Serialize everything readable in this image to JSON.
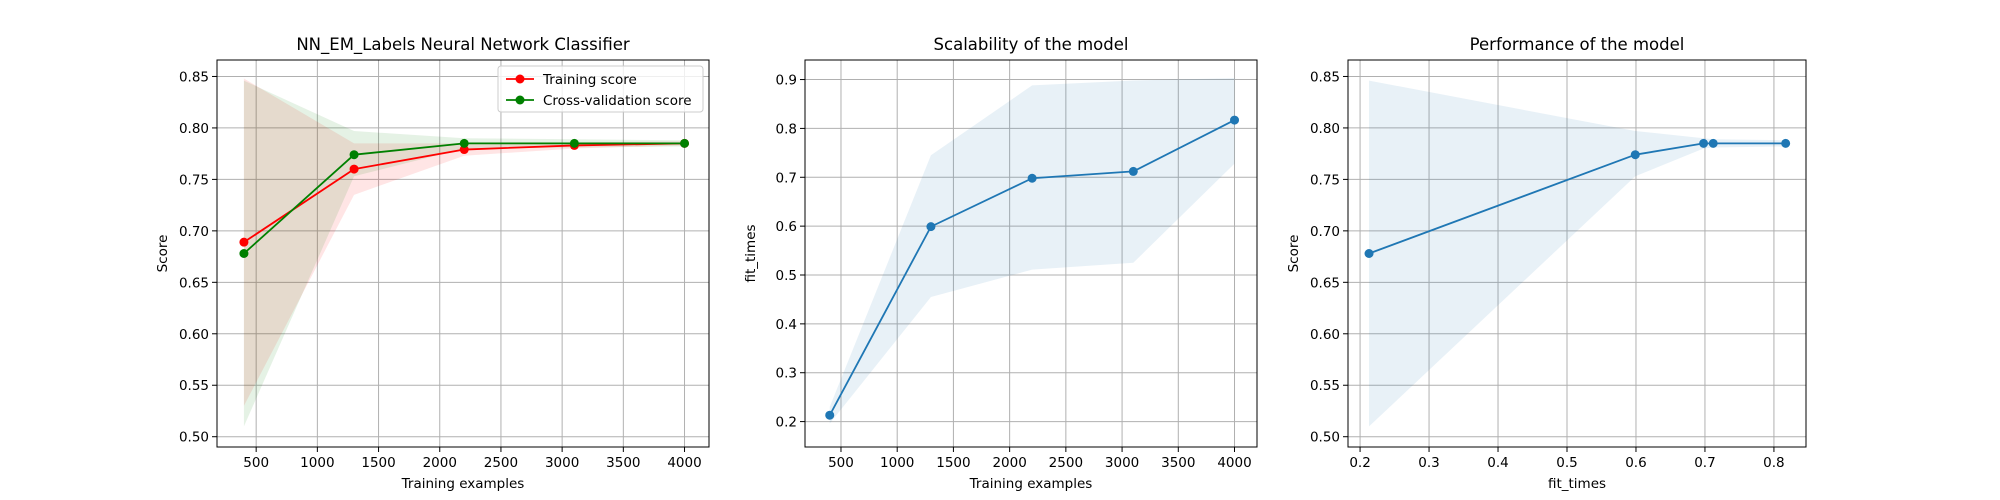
{
  "chart_data": [
    {
      "type": "line",
      "title": "NN_EM_Labels Neural Network Classifier",
      "xlabel": "Training examples",
      "ylabel": "Score",
      "xlim": [
        180,
        4200
      ],
      "ylim": [
        0.49,
        0.866
      ],
      "xticks": [
        500,
        1000,
        1500,
        2000,
        2500,
        3000,
        3500,
        4000
      ],
      "xtick_labels": [
        "500",
        "1000",
        "1500",
        "2000",
        "2500",
        "3000",
        "3500",
        "4000"
      ],
      "yticks": [
        0.5,
        0.55,
        0.6,
        0.65,
        0.7,
        0.75,
        0.8,
        0.85
      ],
      "ytick_labels": [
        "0.50",
        "0.55",
        "0.60",
        "0.65",
        "0.70",
        "0.75",
        "0.80",
        "0.85"
      ],
      "grid": true,
      "legend_position": "top-right",
      "x": [
        400,
        1300,
        2200,
        3100,
        4000
      ],
      "series": [
        {
          "name": "Training score",
          "color": "#ff0000",
          "values": [
            0.689,
            0.76,
            0.779,
            0.783,
            0.785
          ],
          "band_lower": [
            0.53,
            0.735,
            0.773,
            0.78,
            0.783
          ],
          "band_upper": [
            0.848,
            0.785,
            0.785,
            0.786,
            0.787
          ]
        },
        {
          "name": "Cross-validation score",
          "color": "#008000",
          "values": [
            0.678,
            0.774,
            0.785,
            0.785,
            0.785
          ],
          "band_lower": [
            0.51,
            0.753,
            0.78,
            0.781,
            0.782
          ],
          "band_upper": [
            0.846,
            0.797,
            0.79,
            0.789,
            0.788
          ]
        }
      ]
    },
    {
      "type": "line",
      "title": "Scalability of the model",
      "xlabel": "Training examples",
      "ylabel": "fit_times",
      "xlim": [
        180,
        4200
      ],
      "ylim": [
        0.148,
        0.94
      ],
      "xticks": [
        500,
        1000,
        1500,
        2000,
        2500,
        3000,
        3500,
        4000
      ],
      "xtick_labels": [
        "500",
        "1000",
        "1500",
        "2000",
        "2500",
        "3000",
        "3500",
        "4000"
      ],
      "yticks": [
        0.2,
        0.3,
        0.4,
        0.5,
        0.6,
        0.7,
        0.8,
        0.9
      ],
      "ytick_labels": [
        "0.2",
        "0.3",
        "0.4",
        "0.5",
        "0.6",
        "0.7",
        "0.8",
        "0.9"
      ],
      "grid": true,
      "x": [
        400,
        1300,
        2200,
        3100,
        4000
      ],
      "series": [
        {
          "color": "#1f77b4",
          "values": [
            0.213,
            0.599,
            0.698,
            0.712,
            0.817
          ],
          "band_lower": [
            0.196,
            0.455,
            0.511,
            0.525,
            0.728
          ],
          "band_upper": [
            0.23,
            0.745,
            0.888,
            0.898,
            0.903
          ]
        }
      ]
    },
    {
      "type": "line",
      "title": "Performance of the model",
      "xlabel": "fit_times",
      "ylabel": "Score",
      "xlim": [
        0.1825,
        0.8465
      ],
      "ylim": [
        0.49,
        0.866
      ],
      "xticks": [
        0.2,
        0.3,
        0.4,
        0.5,
        0.6,
        0.7,
        0.8
      ],
      "xtick_labels": [
        "0.2",
        "0.3",
        "0.4",
        "0.5",
        "0.6",
        "0.7",
        "0.8"
      ],
      "yticks": [
        0.5,
        0.55,
        0.6,
        0.65,
        0.7,
        0.75,
        0.8,
        0.85
      ],
      "ytick_labels": [
        "0.50",
        "0.55",
        "0.60",
        "0.65",
        "0.70",
        "0.75",
        "0.80",
        "0.85"
      ],
      "grid": true,
      "x": [
        0.213,
        0.599,
        0.698,
        0.712,
        0.817
      ],
      "series": [
        {
          "color": "#1f77b4",
          "values": [
            0.678,
            0.774,
            0.785,
            0.785,
            0.785
          ],
          "band_lower": [
            0.51,
            0.753,
            0.78,
            0.781,
            0.782
          ],
          "band_upper": [
            0.846,
            0.797,
            0.79,
            0.789,
            0.788
          ]
        }
      ]
    }
  ]
}
